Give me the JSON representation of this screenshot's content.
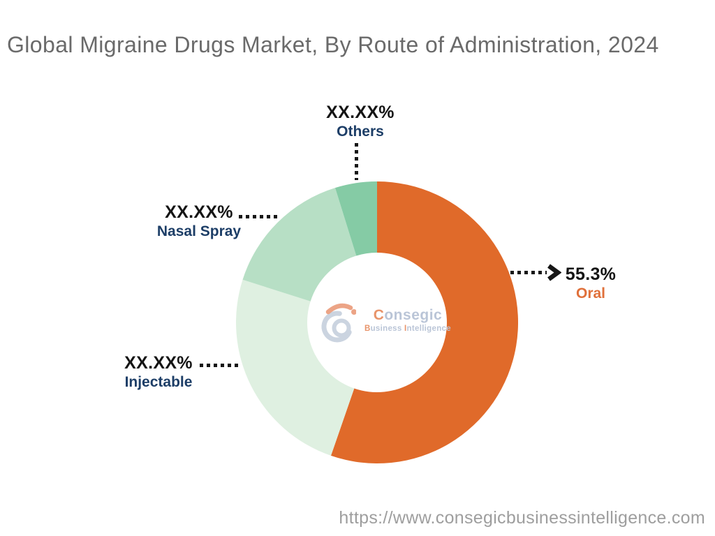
{
  "title": "Global Migraine Drugs Market, By Route of Administration, 2024",
  "footer": {
    "url": "https://www.consegicbusinessintelligence.com"
  },
  "watermark": {
    "brand_initial": "C",
    "brand_rest": "onsegic",
    "tagline_b": "B",
    "tagline_usiness": "usiness ",
    "tagline_i": "I",
    "tagline_ntelligence": "ntelligence"
  },
  "colors": {
    "title_gray": "#6a6a6a",
    "url_gray": "#9e9e9e",
    "leader_line": "#161616",
    "percent_text": "#141414",
    "navy_label": "#1d3e67",
    "oral_label": "#e0703a",
    "watermark_gray": "#b7c2d5",
    "watermark_orange": "#e78f63",
    "background": "#ffffff"
  },
  "chart_data": {
    "type": "pie",
    "subtype": "donut",
    "title": "Global Migraine Drugs Market, By Route of Administration, 2024",
    "unit": "%",
    "start_angle_deg": 0,
    "direction": "clockwise",
    "note": "Only the Oral share is printed; other shares are masked as XX.XX% in the image. share_pct_est values are estimated from arc angles.",
    "segments": [
      {
        "name": "Oral",
        "display_value": "55.3%",
        "value_masked": false,
        "share_pct_est": 55.3,
        "color": "#e06a2a",
        "label_color": "#e0703a"
      },
      {
        "name": "Injectable",
        "display_value": "XX.XX%",
        "value_masked": true,
        "share_pct_est": 24.6,
        "color": "#dff0e1",
        "label_color": "#1d3e67"
      },
      {
        "name": "Nasal Spray",
        "display_value": "XX.XX%",
        "value_masked": true,
        "share_pct_est": 15.3,
        "color": "#b7dfc5",
        "label_color": "#1d3e67"
      },
      {
        "name": "Others",
        "display_value": "XX.XX%",
        "value_masked": true,
        "share_pct_est": 4.8,
        "color": "#85cba5",
        "label_color": "#1d3e67"
      }
    ]
  }
}
